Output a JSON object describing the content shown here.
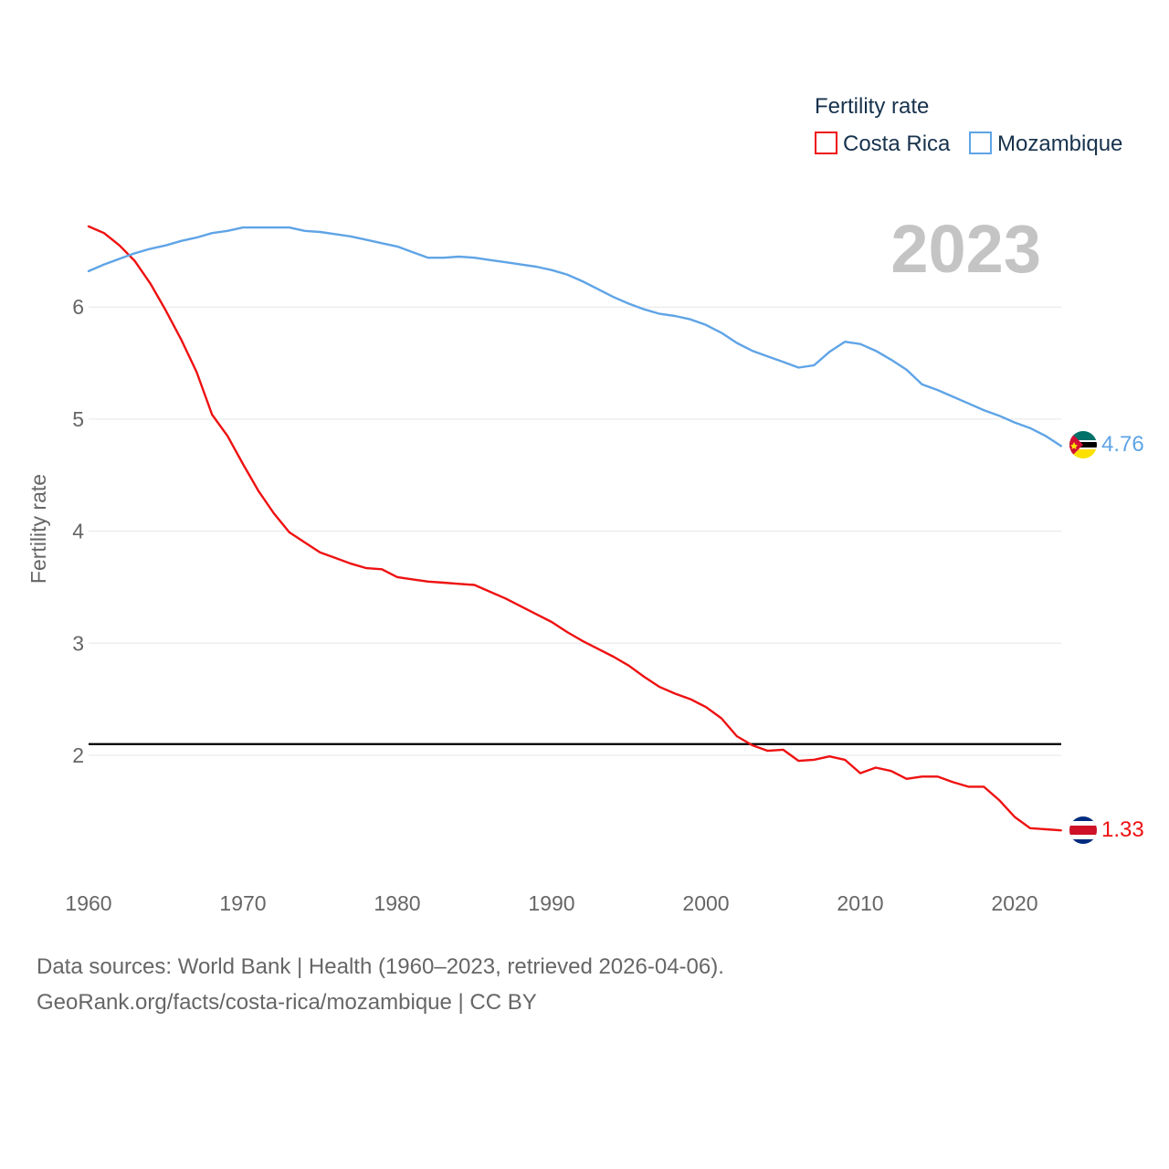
{
  "chart_data": {
    "type": "line",
    "ylabel": "Fertility rate",
    "legend_title": "Fertility rate",
    "legend_position": "top-right",
    "year_label": "2023",
    "x_ticks": [
      1960,
      1970,
      1980,
      1990,
      2000,
      2010,
      2020
    ],
    "y_ticks": [
      2,
      3,
      4,
      5,
      6
    ],
    "xlim": [
      1960,
      2023
    ],
    "ylim": [
      1.0,
      7.0
    ],
    "reference_line": 2.1,
    "grid": true,
    "x": [
      1960,
      1961,
      1962,
      1963,
      1964,
      1965,
      1966,
      1967,
      1968,
      1969,
      1970,
      1971,
      1972,
      1973,
      1974,
      1975,
      1976,
      1977,
      1978,
      1979,
      1980,
      1981,
      1982,
      1983,
      1984,
      1985,
      1986,
      1987,
      1988,
      1989,
      1990,
      1991,
      1992,
      1993,
      1994,
      1995,
      1996,
      1997,
      1998,
      1999,
      2000,
      2001,
      2002,
      2003,
      2004,
      2005,
      2006,
      2007,
      2008,
      2009,
      2010,
      2011,
      2012,
      2013,
      2014,
      2015,
      2016,
      2017,
      2018,
      2019,
      2020,
      2021,
      2022,
      2023
    ],
    "series": [
      {
        "name": "Costa Rica",
        "color": "#ee1111",
        "end_label": "1.33",
        "flag": "costa-rica",
        "values": [
          6.72,
          6.66,
          6.55,
          6.41,
          6.21,
          5.97,
          5.71,
          5.42,
          5.04,
          4.85,
          4.6,
          4.36,
          4.16,
          3.99,
          3.9,
          3.81,
          3.76,
          3.71,
          3.67,
          3.66,
          3.59,
          3.57,
          3.55,
          3.54,
          3.53,
          3.52,
          3.46,
          3.4,
          3.33,
          3.26,
          3.19,
          3.1,
          3.02,
          2.95,
          2.88,
          2.8,
          2.7,
          2.61,
          2.55,
          2.5,
          2.43,
          2.33,
          2.17,
          2.09,
          2.04,
          2.05,
          1.95,
          1.96,
          1.99,
          1.96,
          1.84,
          1.89,
          1.86,
          1.79,
          1.81,
          1.81,
          1.76,
          1.72,
          1.72,
          1.6,
          1.45,
          1.35,
          1.34,
          1.33
        ]
      },
      {
        "name": "Mozambique",
        "color": "#5fa4e6",
        "end_label": "4.76",
        "flag": "mozambique",
        "values": [
          6.32,
          6.38,
          6.43,
          6.48,
          6.52,
          6.55,
          6.59,
          6.62,
          6.66,
          6.68,
          6.71,
          6.71,
          6.71,
          6.71,
          6.68,
          6.67,
          6.65,
          6.63,
          6.6,
          6.57,
          6.54,
          6.49,
          6.44,
          6.44,
          6.45,
          6.44,
          6.42,
          6.4,
          6.38,
          6.36,
          6.33,
          6.29,
          6.23,
          6.16,
          6.09,
          6.03,
          5.98,
          5.94,
          5.92,
          5.89,
          5.84,
          5.77,
          5.68,
          5.61,
          5.56,
          5.51,
          5.46,
          5.48,
          5.6,
          5.69,
          5.67,
          5.61,
          5.53,
          5.44,
          5.31,
          5.26,
          5.2,
          5.14,
          5.08,
          5.03,
          4.97,
          4.92,
          4.85,
          4.76
        ]
      }
    ]
  },
  "footer": {
    "line1": "Data sources: World Bank | Health (1960–2023, retrieved 2026-04-06).",
    "line2": "GeoRank.org/facts/costa-rica/mozambique | CC BY"
  }
}
